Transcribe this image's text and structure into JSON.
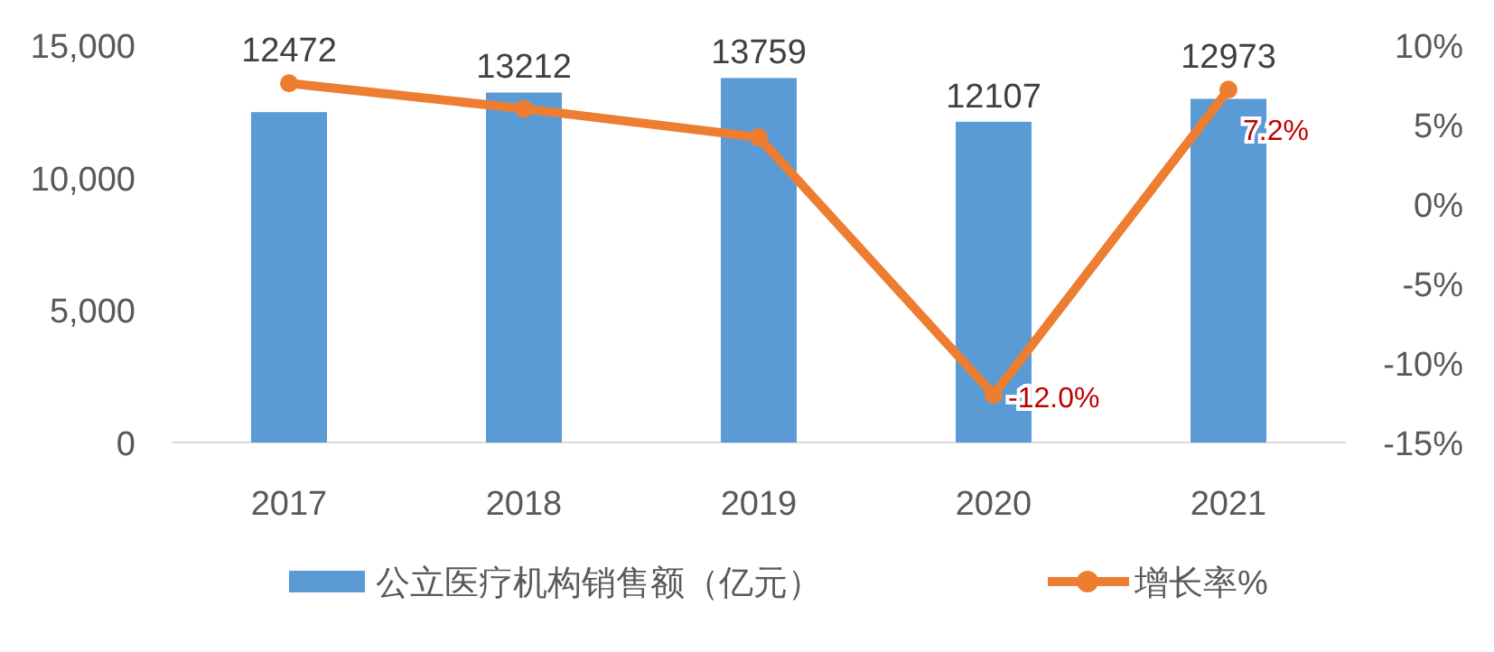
{
  "chart_data": {
    "type": "bar",
    "categories": [
      "2017",
      "2018",
      "2019",
      "2020",
      "2021"
    ],
    "series": [
      {
        "name": "公立医疗机构销售额（亿元）",
        "color": "#5b9bd5",
        "values": [
          12472,
          13212,
          13759,
          12107,
          12973
        ],
        "data_labels": true
      },
      {
        "name": "增长率%",
        "type": "line",
        "axis": "y2",
        "color": "#ed7d31",
        "marker": "circle",
        "values": [
          7.6,
          6.0,
          4.2,
          -12.0,
          7.2
        ],
        "value_labels": [
          null,
          null,
          null,
          "-12.0%",
          "7.2%"
        ]
      }
    ],
    "ylim": [
      0,
      15000
    ],
    "yticks": [
      0,
      {
        "value": 5000,
        "label": "5,000"
      },
      {
        "value": 10000,
        "label": "10,000"
      },
      {
        "value": 15000,
        "label": "15,000"
      }
    ],
    "y2lim": [
      -15,
      10
    ],
    "y2ticks": [
      {
        "value": -15,
        "label": "-15%"
      },
      {
        "value": -10,
        "label": "-10%"
      },
      {
        "value": -5,
        "label": "-5%"
      },
      {
        "value": 0,
        "label": "0%"
      },
      {
        "value": 5,
        "label": "5%"
      },
      {
        "value": 10,
        "label": "10%"
      }
    ],
    "grid": false,
    "legend": "bottom"
  }
}
